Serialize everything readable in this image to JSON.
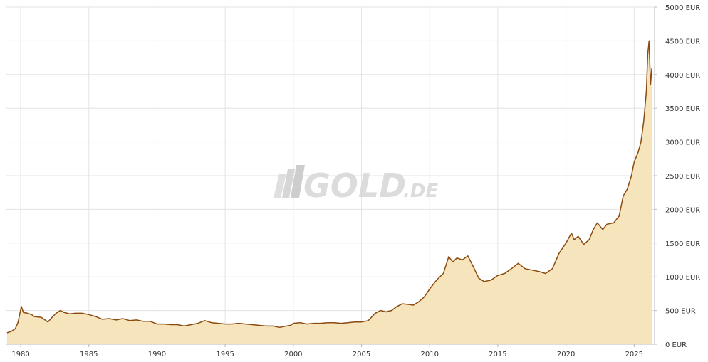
{
  "watermark": {
    "brand": "GOLD",
    "suffix": ".DE"
  },
  "colors": {
    "line": "#8B4A0E",
    "fill": "#F5E4BC",
    "grid": "#E3E3E3",
    "axis": "#B8B8B8",
    "text": "#333333",
    "watermark": "#D9D9D9"
  },
  "chart_data": {
    "type": "area",
    "title": "",
    "xlabel": "",
    "ylabel": "",
    "currency": "EUR",
    "xlim": [
      1978.9,
      2026.5
    ],
    "ylim": [
      0,
      5000
    ],
    "grid": true,
    "x_ticks": [
      1980,
      1985,
      1990,
      1995,
      2000,
      2005,
      2010,
      2015,
      2020,
      2025
    ],
    "x_tick_labels": [
      "1980",
      "1985",
      "1990",
      "1995",
      "2000",
      "2005",
      "2010",
      "2015",
      "2020",
      "2025"
    ],
    "y_ticks": [
      0,
      500,
      1000,
      1500,
      2000,
      2500,
      3000,
      3500,
      4000,
      4500,
      5000
    ],
    "y_tick_labels": [
      "0 EUR",
      "500 EUR",
      "1000 EUR",
      "1500 EUR",
      "2000 EUR",
      "2500 EUR",
      "3000 EUR",
      "3500 EUR",
      "4000 EUR",
      "4500 EUR",
      "5000 EUR"
    ],
    "y_axis_position": "right",
    "series": [
      {
        "x": [
          1979.0,
          1979.3,
          1979.6,
          1979.8,
          1980.05,
          1980.2,
          1980.5,
          1980.8,
          1981.0,
          1981.5,
          1982.0,
          1982.3,
          1982.6,
          1982.9,
          1983.2,
          1983.6,
          1984.0,
          1984.5,
          1985.0,
          1985.5,
          1986.0,
          1986.5,
          1987.0,
          1987.5,
          1988.0,
          1988.5,
          1989.0,
          1989.5,
          1990.0,
          1990.5,
          1991.0,
          1991.5,
          1992.0,
          1992.5,
          1993.0,
          1993.5,
          1994.0,
          1994.5,
          1995.0,
          1995.5,
          1996.0,
          1996.5,
          1997.0,
          1997.5,
          1998.0,
          1998.5,
          1999.0,
          1999.5,
          1999.8,
          2000.0,
          2000.5,
          2001.0,
          2001.5,
          2002.0,
          2002.5,
          2003.0,
          2003.5,
          2004.0,
          2004.5,
          2005.0,
          2005.5,
          2006.0,
          2006.4,
          2006.8,
          2007.2,
          2007.6,
          2008.0,
          2008.5,
          2008.8,
          2009.2,
          2009.6,
          2010.0,
          2010.5,
          2011.0,
          2011.4,
          2011.7,
          2012.0,
          2012.4,
          2012.8,
          2013.2,
          2013.6,
          2014.0,
          2014.5,
          2015.0,
          2015.5,
          2016.0,
          2016.5,
          2017.0,
          2017.5,
          2018.0,
          2018.5,
          2019.0,
          2019.5,
          2020.0,
          2020.4,
          2020.6,
          2020.9,
          2021.3,
          2021.7,
          2022.0,
          2022.3,
          2022.7,
          2023.0,
          2023.5,
          2023.9,
          2024.2,
          2024.5,
          2024.8,
          2025.0,
          2025.3,
          2025.5,
          2025.7,
          2025.9,
          2026.0,
          2026.1,
          2026.2,
          2026.3
        ],
        "values": [
          170,
          190,
          230,
          320,
          560,
          470,
          460,
          440,
          410,
          400,
          330,
          400,
          460,
          500,
          470,
          450,
          460,
          460,
          440,
          410,
          370,
          380,
          360,
          380,
          350,
          360,
          340,
          340,
          300,
          300,
          290,
          290,
          270,
          290,
          310,
          350,
          320,
          310,
          300,
          300,
          310,
          300,
          290,
          280,
          270,
          270,
          250,
          270,
          280,
          310,
          320,
          300,
          310,
          310,
          320,
          320,
          310,
          320,
          330,
          330,
          350,
          460,
          500,
          480,
          500,
          560,
          600,
          590,
          580,
          630,
          700,
          820,
          950,
          1050,
          1300,
          1220,
          1280,
          1250,
          1310,
          1150,
          980,
          930,
          950,
          1020,
          1050,
          1120,
          1200,
          1120,
          1100,
          1080,
          1050,
          1120,
          1350,
          1500,
          1650,
          1550,
          1600,
          1480,
          1550,
          1700,
          1800,
          1700,
          1780,
          1800,
          1900,
          2200,
          2300,
          2500,
          2700,
          2850,
          3000,
          3300,
          3750,
          4300,
          4500,
          3850,
          4100
        ]
      }
    ]
  }
}
